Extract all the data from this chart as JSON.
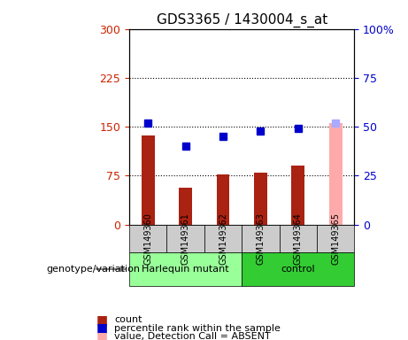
{
  "title": "GDS3365 / 1430004_s_at",
  "samples": [
    "GSM149360",
    "GSM149361",
    "GSM149362",
    "GSM149363",
    "GSM149364",
    "GSM149365"
  ],
  "count_values": [
    137,
    57,
    77,
    80,
    90,
    null
  ],
  "rank_values": [
    52,
    40,
    45,
    48,
    49,
    null
  ],
  "absent_count": 155,
  "absent_rank": 52,
  "absent_sample_idx": 5,
  "bar_color": "#aa2211",
  "absent_bar_color": "#ffaaaa",
  "rank_color": "#0000cc",
  "absent_rank_color": "#aaaaff",
  "left_ylim": [
    0,
    300
  ],
  "right_ylim": [
    0,
    100
  ],
  "left_yticks": [
    0,
    75,
    150,
    225,
    300
  ],
  "right_yticks": [
    0,
    25,
    50,
    75,
    100
  ],
  "right_yticklabels": [
    "0",
    "25",
    "50",
    "75",
    "100%"
  ],
  "left_color": "#cc2200",
  "right_color": "#0000cc",
  "harlequin_group": [
    0,
    1,
    2
  ],
  "control_group": [
    3,
    4,
    5
  ],
  "harlequin_color": "#99ff99",
  "control_color": "#33cc33",
  "group_label_harlequin": "Harlequin mutant",
  "group_label_control": "control",
  "genotype_label": "genotype/variation",
  "dotted_line_color": "#000000",
  "bg_plot": "#ffffff",
  "bg_sample": "#cccccc"
}
